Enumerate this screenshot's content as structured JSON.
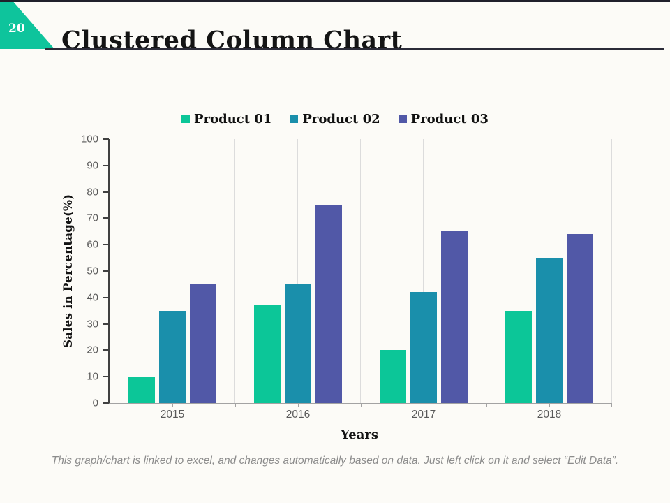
{
  "page": {
    "number": "20",
    "accent_color": "#0ec49c",
    "background_color": "#fcfbf7",
    "topbar_color": "#20202b"
  },
  "header": {
    "title": "Clustered Column Chart"
  },
  "chart_data": {
    "type": "bar",
    "title": "",
    "categories": [
      "2015",
      "2016",
      "2017",
      "2018"
    ],
    "series": [
      {
        "name": "Product 01",
        "color": "#0cc698",
        "values": [
          10,
          37,
          20,
          35
        ]
      },
      {
        "name": "Product 02",
        "color": "#1a8fab",
        "values": [
          35,
          45,
          42,
          55
        ]
      },
      {
        "name": "Product 03",
        "color": "#5158a7",
        "values": [
          45,
          75,
          65,
          64
        ]
      }
    ],
    "xlabel": "Years",
    "ylabel": "Sales in Percentage(%)",
    "ylim": [
      0,
      100
    ],
    "ytick_step": 10,
    "yticks": [
      0,
      10,
      20,
      30,
      40,
      50,
      60,
      70,
      80,
      90,
      100
    ],
    "legend_position": "top",
    "grid": "vertical-only",
    "gridline_color": "#dcdcdc"
  },
  "footer": {
    "note": "This graph/chart is linked to excel, and changes automatically based on data. Just left click on it and select “Edit Data”."
  }
}
